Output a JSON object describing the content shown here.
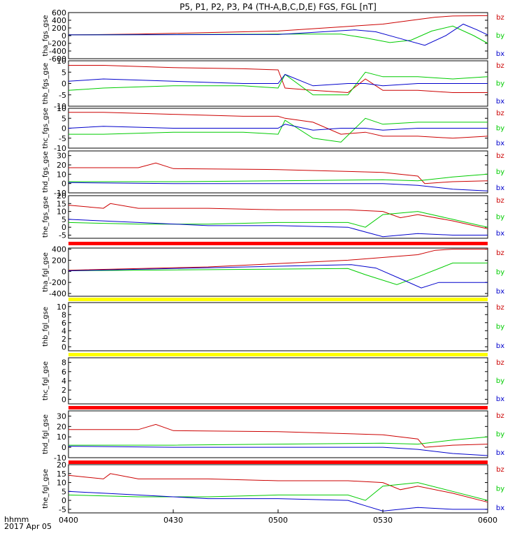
{
  "title": "P5, P1, P2, P3, P4 (TH-A,B,C,D,E) FGS, FGL [nT]",
  "x_axis": {
    "row_label": "hhmm",
    "date_label": "2017 Apr 05",
    "ticks": [
      "0400",
      "0430",
      "0500",
      "0530",
      "0600"
    ],
    "range_minutes": [
      0,
      120
    ]
  },
  "colors": {
    "bx": "#0000cc",
    "by": "#00cc00",
    "bz": "#cc0000",
    "yellow_bar": "#ffff00",
    "red_bar": "#ff0000"
  },
  "chart_data": [
    {
      "type": "line",
      "panel": "tha_fgs_gse",
      "ylabel": "tha_fgs_gse",
      "yticks": [
        600,
        400,
        200,
        0,
        -200,
        -400,
        -600
      ],
      "ylim": [
        -600,
        600
      ],
      "legend": [
        "bz",
        "by",
        "bx"
      ],
      "series": [
        {
          "name": "bz",
          "x": [
            0,
            20,
            60,
            90,
            100,
            105,
            110,
            120
          ],
          "y": [
            20,
            40,
            120,
            300,
            420,
            480,
            510,
            520
          ]
        },
        {
          "name": "by",
          "x": [
            0,
            60,
            78,
            85,
            92,
            98,
            104,
            110,
            116,
            120
          ],
          "y": [
            20,
            40,
            40,
            -60,
            -180,
            -120,
            120,
            250,
            0,
            -200
          ]
        },
        {
          "name": "bx",
          "x": [
            0,
            60,
            82,
            88,
            94,
            102,
            108,
            113,
            117,
            120
          ],
          "y": [
            20,
            30,
            150,
            100,
            -50,
            -250,
            0,
            300,
            150,
            20
          ]
        }
      ]
    },
    {
      "type": "line",
      "panel": "thb_fgs_gse",
      "ylabel": "thb_fgs_gse",
      "yticks": [
        10,
        5,
        0,
        -5,
        -10
      ],
      "ylim": [
        -10,
        10
      ],
      "legend": [
        "bz",
        "by",
        "bx"
      ],
      "series": [
        {
          "name": "bz",
          "x": [
            0,
            10,
            30,
            50,
            60,
            62,
            70,
            80,
            85,
            90,
            100,
            110,
            120
          ],
          "y": [
            8,
            8,
            7,
            6.5,
            6,
            -2,
            -3,
            -4,
            2,
            -3,
            -3,
            -4,
            -4
          ]
        },
        {
          "name": "by",
          "x": [
            0,
            10,
            30,
            50,
            60,
            62,
            70,
            80,
            85,
            90,
            100,
            110,
            120
          ],
          "y": [
            -3,
            -2,
            -1,
            -1,
            -2,
            4,
            -5,
            -5,
            5,
            3,
            3,
            2,
            3
          ]
        },
        {
          "name": "bx",
          "x": [
            0,
            10,
            30,
            50,
            60,
            62,
            70,
            80,
            85,
            90,
            100,
            110,
            120
          ],
          "y": [
            1,
            2,
            1,
            0,
            0,
            4,
            -1,
            0,
            0,
            -1,
            0,
            0,
            0
          ]
        }
      ]
    },
    {
      "type": "line",
      "panel": "thc_fgs_gse",
      "ylabel": "thc_fgs_gse",
      "yticks": [
        10,
        5,
        0,
        -5,
        -10
      ],
      "ylim": [
        -10,
        10
      ],
      "legend": [
        "bz",
        "by",
        "bx"
      ],
      "series": [
        {
          "name": "bz",
          "x": [
            0,
            10,
            30,
            50,
            60,
            62,
            70,
            78,
            85,
            90,
            100,
            110,
            120
          ],
          "y": [
            8,
            8,
            7,
            6,
            6,
            5,
            3,
            -3,
            -2,
            -4,
            -4,
            -5,
            -4
          ]
        },
        {
          "name": "by",
          "x": [
            0,
            10,
            30,
            50,
            60,
            62,
            70,
            78,
            85,
            90,
            100,
            110,
            120
          ],
          "y": [
            -3,
            -3,
            -2,
            -2,
            -3,
            4,
            -5,
            -7,
            5,
            2,
            3,
            3,
            3
          ]
        },
        {
          "name": "bx",
          "x": [
            0,
            10,
            30,
            50,
            60,
            62,
            70,
            78,
            85,
            90,
            100,
            110,
            120
          ],
          "y": [
            0,
            1,
            0,
            0,
            0,
            2,
            -1,
            0,
            0,
            -1,
            0,
            0,
            0
          ]
        }
      ]
    },
    {
      "type": "line",
      "panel": "thd_fgs_gse",
      "ylabel": "thd_fgs_gse",
      "yticks": [
        30,
        20,
        10,
        0,
        -10
      ],
      "ylim": [
        -10,
        35
      ],
      "legend": [
        "bz",
        "by",
        "bx"
      ],
      "series": [
        {
          "name": "bz",
          "x": [
            0,
            20,
            25,
            30,
            60,
            90,
            100,
            102,
            110,
            120
          ],
          "y": [
            17,
            17,
            22,
            16,
            15,
            12,
            8,
            0,
            2,
            3
          ]
        },
        {
          "name": "by",
          "x": [
            0,
            30,
            60,
            90,
            100,
            110,
            120
          ],
          "y": [
            2,
            2,
            3,
            4,
            3,
            7,
            10
          ]
        },
        {
          "name": "bx",
          "x": [
            0,
            30,
            60,
            90,
            100,
            110,
            120
          ],
          "y": [
            1,
            0,
            0,
            0,
            -2,
            -6,
            -8
          ]
        }
      ]
    },
    {
      "type": "line",
      "panel": "the_fgs_gse",
      "ylabel": "the_fgs_gse",
      "yticks": [
        20,
        15,
        10,
        5,
        0,
        -5
      ],
      "ylim": [
        -7,
        20
      ],
      "legend": [
        "bz",
        "by",
        "bx"
      ],
      "series": [
        {
          "name": "bz",
          "x": [
            0,
            10,
            12,
            20,
            40,
            60,
            80,
            90,
            95,
            100,
            110,
            120
          ],
          "y": [
            14,
            12,
            15,
            12,
            12,
            11,
            11,
            10,
            6,
            8,
            4,
            -1
          ]
        },
        {
          "name": "by",
          "x": [
            0,
            20,
            40,
            60,
            80,
            85,
            90,
            100,
            110,
            120
          ],
          "y": [
            3,
            2,
            2,
            3,
            3,
            0,
            8,
            10,
            5,
            0
          ]
        },
        {
          "name": "bx",
          "x": [
            0,
            20,
            40,
            60,
            80,
            85,
            90,
            100,
            110,
            120
          ],
          "y": [
            5,
            3,
            1,
            1,
            0,
            -3,
            -6,
            -4,
            -5,
            -5
          ]
        }
      ]
    },
    {
      "type": "line",
      "panel": "tha_fgl_gse",
      "ylabel": "tha_fgl_gse",
      "yticks": [
        400,
        200,
        0,
        -200,
        -400
      ],
      "ylim": [
        -450,
        420
      ],
      "legend": [
        "bz",
        "by",
        "bx"
      ],
      "status_bar": "red",
      "series": [
        {
          "name": "bz",
          "x": [
            0,
            40,
            80,
            100,
            105,
            110,
            120
          ],
          "y": [
            20,
            80,
            200,
            300,
            380,
            400,
            400
          ]
        },
        {
          "name": "by",
          "x": [
            0,
            80,
            85,
            94,
            100,
            110,
            120
          ],
          "y": [
            10,
            50,
            -60,
            -240,
            -100,
            150,
            150
          ]
        },
        {
          "name": "bx",
          "x": [
            0,
            81,
            88,
            96,
            101,
            106,
            110,
            120
          ],
          "y": [
            10,
            120,
            60,
            -160,
            -300,
            -200,
            -200,
            -200
          ]
        }
      ]
    },
    {
      "type": "line",
      "panel": "thb_fgl_gse",
      "ylabel": "thb_fgl_gse",
      "yticks": [
        10,
        8,
        6,
        4,
        2,
        0
      ],
      "ylim": [
        -1,
        11
      ],
      "legend": [
        "bz",
        "by",
        "bx"
      ],
      "status_bar": "yellow",
      "series": []
    },
    {
      "type": "line",
      "panel": "thc_fgl_gse",
      "ylabel": "thc_fgl_gse",
      "yticks": [
        8,
        6,
        4,
        2,
        0
      ],
      "ylim": [
        -1,
        9
      ],
      "legend": [
        "bz",
        "by",
        "bx"
      ],
      "status_bar": "yellow",
      "series": []
    },
    {
      "type": "line",
      "panel": "thd_fgl_gse",
      "ylabel": "thd_fgl_gse",
      "yticks": [
        30,
        20,
        10,
        0,
        -10
      ],
      "ylim": [
        -10,
        35
      ],
      "legend": [
        "bz",
        "by",
        "bx"
      ],
      "status_bar": "red",
      "series": [
        {
          "name": "bz",
          "x": [
            0,
            20,
            25,
            30,
            60,
            90,
            100,
            102,
            110,
            120
          ],
          "y": [
            17,
            17,
            22,
            16,
            15,
            12,
            8,
            0,
            2,
            3
          ]
        },
        {
          "name": "by",
          "x": [
            0,
            30,
            60,
            90,
            100,
            110,
            120
          ],
          "y": [
            2,
            2,
            3,
            4,
            3,
            7,
            10
          ]
        },
        {
          "name": "bx",
          "x": [
            0,
            30,
            60,
            90,
            100,
            110,
            120
          ],
          "y": [
            1,
            0,
            0,
            0,
            -2,
            -6,
            -8
          ]
        }
      ]
    },
    {
      "type": "line",
      "panel": "the_fgl_gse",
      "ylabel": "the_fgl_gse",
      "yticks": [
        20,
        15,
        10,
        5,
        0,
        -5
      ],
      "ylim": [
        -7,
        20
      ],
      "legend": [
        "bz",
        "by",
        "bx"
      ],
      "status_bar": "red",
      "series": [
        {
          "name": "bz",
          "x": [
            0,
            10,
            12,
            20,
            40,
            60,
            80,
            90,
            95,
            100,
            110,
            120
          ],
          "y": [
            14,
            12,
            15,
            12,
            12,
            11,
            11,
            10,
            6,
            8,
            4,
            -1
          ]
        },
        {
          "name": "by",
          "x": [
            0,
            20,
            40,
            60,
            80,
            85,
            90,
            100,
            110,
            120
          ],
          "y": [
            3,
            2,
            2,
            3,
            3,
            0,
            8,
            10,
            5,
            0
          ]
        },
        {
          "name": "bx",
          "x": [
            0,
            20,
            40,
            60,
            80,
            85,
            90,
            100,
            110,
            120
          ],
          "y": [
            5,
            3,
            1,
            1,
            0,
            -3,
            -6,
            -4,
            -5,
            -5
          ]
        }
      ]
    }
  ]
}
